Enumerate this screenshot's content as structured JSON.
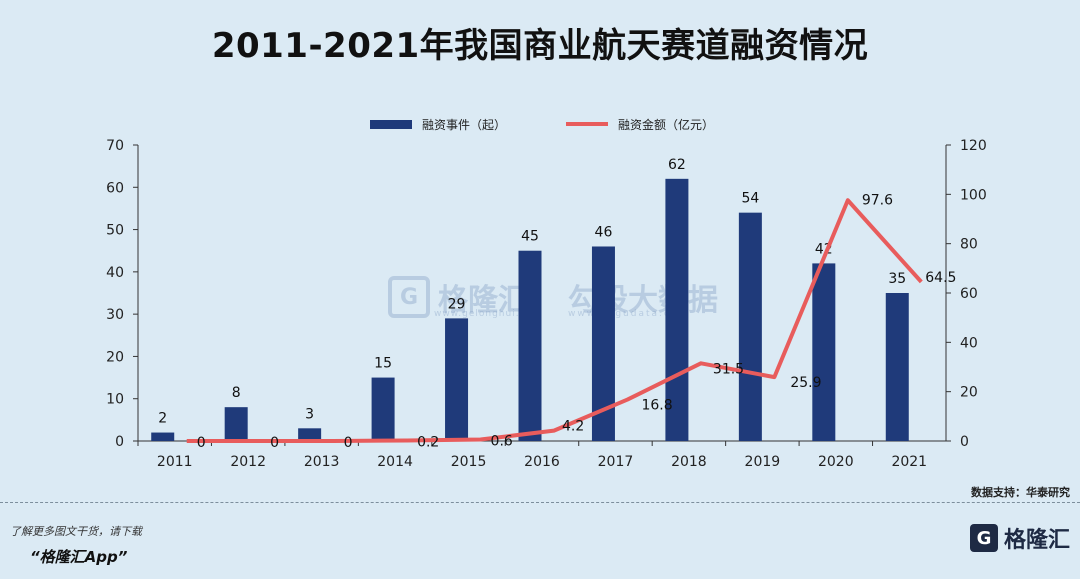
{
  "title": "2011-2021年我国商业航天赛道融资情况",
  "legend": {
    "bar_label": "融资事件（起）",
    "line_label": "融资金额（亿元）"
  },
  "source": "数据支持：华泰研究",
  "footer": {
    "promo_line1": "了解更多图文干货，请下载",
    "promo_line2": "“格隆汇App”",
    "brand_logo_letter": "G",
    "brand_name": "格隆汇"
  },
  "watermark": {
    "name": "格隆汇",
    "site": "www.gelonghui.com",
    "name2": "勾股大数据",
    "site2": "www.gogudata.com"
  },
  "colors": {
    "bar": "#1f3a7a",
    "line": "#e85c5c",
    "background": "#dbeaf4"
  },
  "chart_data": {
    "type": "bar",
    "title": "2011-2021年我国商业航天赛道融资情况",
    "categories": [
      "2011",
      "2012",
      "2013",
      "2014",
      "2015",
      "2016",
      "2017",
      "2018",
      "2019",
      "2020",
      "2021"
    ],
    "series": [
      {
        "name": "融资事件（起）",
        "type": "bar",
        "axis": "left",
        "values": [
          2,
          8,
          3,
          15,
          29,
          45,
          46,
          62,
          54,
          42,
          35
        ]
      },
      {
        "name": "融资金额（亿元）",
        "type": "line",
        "axis": "right",
        "values": [
          0,
          0,
          0,
          0.2,
          0.6,
          4.2,
          16.8,
          31.5,
          25.9,
          97.6,
          64.5
        ]
      }
    ],
    "left_axis": {
      "min": 0,
      "max": 70,
      "ticks": [
        0,
        10,
        20,
        30,
        40,
        50,
        60,
        70
      ]
    },
    "right_axis": {
      "min": 0,
      "max": 120,
      "ticks": [
        0,
        20,
        40,
        60,
        80,
        100,
        120
      ]
    },
    "bar_labels": [
      "2",
      "8",
      "3",
      "15",
      "29",
      "45",
      "46",
      "62",
      "54",
      "42",
      "35"
    ],
    "line_labels": [
      "0",
      "0",
      "0",
      "0.2",
      "0.6",
      "4.2",
      "16.8",
      "31.5",
      "25.9",
      "97.6",
      "64.5"
    ],
    "legend_position": "top",
    "grid": false
  }
}
